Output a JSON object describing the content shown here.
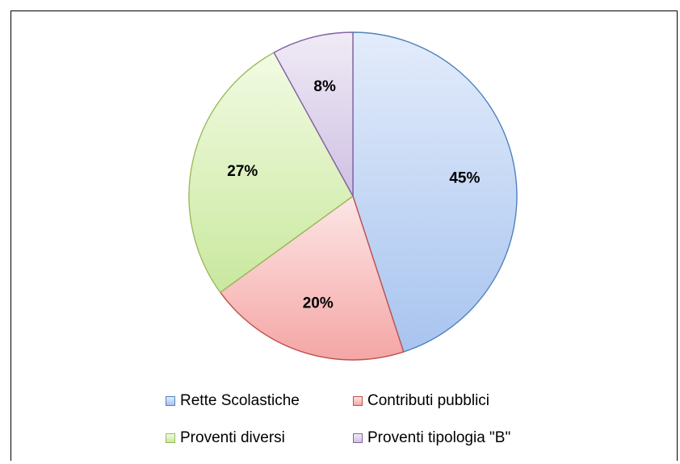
{
  "chart_data": {
    "type": "pie",
    "title": "",
    "slices": [
      {
        "name": "Rette Scolastiche",
        "value": 45,
        "label": "45%",
        "color_light": "#e3ecfb",
        "color_dark": "#a8c4ef",
        "stroke": "#4f81bd"
      },
      {
        "name": "Contributi pubblici",
        "value": 20,
        "label": "20%",
        "color_light": "#fde6e6",
        "color_dark": "#f4a6a5",
        "stroke": "#c0504d"
      },
      {
        "name": "Proventi diversi",
        "value": 27,
        "label": "27%",
        "color_light": "#f2fbe3",
        "color_dark": "#c9e89e",
        "stroke": "#9bbb59"
      },
      {
        "name": "Proventi tipologia \"B\"",
        "value": 8,
        "label": "8%",
        "color_light": "#f0ebf6",
        "color_dark": "#cfc0e3",
        "stroke": "#8064a2"
      }
    ],
    "start": "12 o'clock",
    "direction": "clockwise",
    "legend_position": "bottom"
  }
}
